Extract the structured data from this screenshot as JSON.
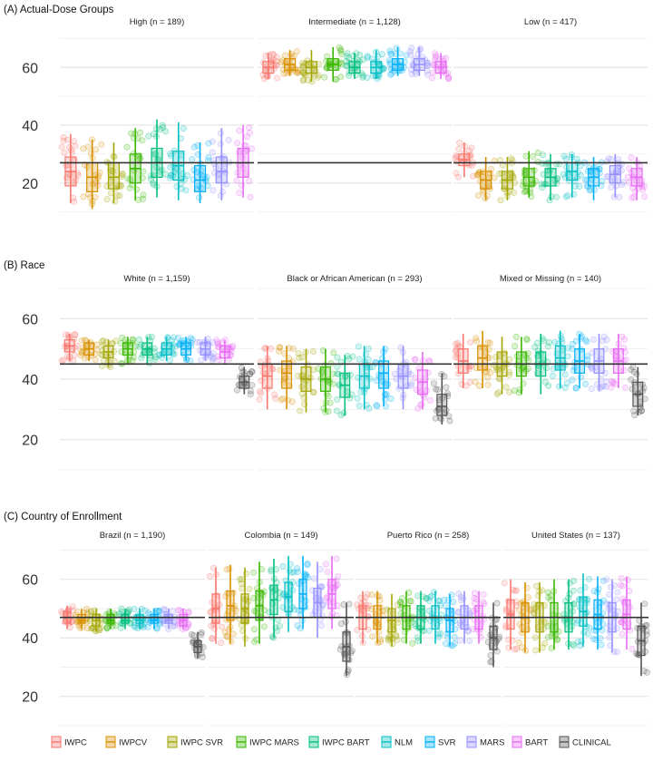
{
  "colors": {
    "series": {
      "IWPC": "#F8766D",
      "IWPCV": "#D89000",
      "IWPC SVR": "#A3A500",
      "IWPC MARS": "#39B600",
      "IWPC BART": "#00BF7D",
      "NLM": "#00BFC4",
      "SVR": "#00B0F6",
      "MARS": "#9590FF",
      "BART": "#E76BF3",
      "CLINICAL": "#FF62BC",
      "CLINICAL_ACTUAL": "#555555"
    },
    "panel_bg": "#FFFFFF",
    "grid": "#E6E6E6",
    "reference_line": "#333333"
  },
  "chart_data": [
    {
      "section": "(A) Actual-Dose Groups",
      "type": "jitter-boxplot",
      "series_order": [
        "IWPC",
        "IWPCV",
        "IWPC SVR",
        "IWPC MARS",
        "IWPC BART",
        "NLM",
        "SVR",
        "MARS",
        "BART"
      ],
      "yticks": [
        20,
        40,
        60
      ],
      "ylim": [
        8,
        72
      ],
      "reference_line": 27,
      "facets": [
        {
          "title": "High (n = 189)",
          "medians": [
            24,
            22,
            22,
            25,
            27,
            26,
            21,
            24,
            27
          ],
          "q1": [
            19,
            17,
            18,
            20,
            22,
            21,
            17,
            20,
            22
          ],
          "q3": [
            29,
            27,
            27,
            30,
            32,
            31,
            26,
            29,
            32
          ],
          "wlo": [
            13,
            11,
            13,
            14,
            15,
            14,
            13,
            14,
            15
          ],
          "whi": [
            37,
            35,
            34,
            39,
            42,
            41,
            34,
            39,
            40
          ],
          "points": 22
        },
        {
          "title": "Intermediate (n = 1,128)",
          "medians": [
            60,
            61,
            60,
            61,
            60,
            60,
            61,
            61,
            60
          ],
          "q1": [
            58,
            59,
            58,
            59,
            58,
            58,
            59,
            59,
            58
          ],
          "q3": [
            62,
            63,
            62,
            63,
            62,
            62,
            63,
            63,
            62
          ],
          "wlo": [
            56,
            57,
            55,
            55,
            56,
            56,
            57,
            57,
            56
          ],
          "whi": [
            65,
            66,
            66,
            67,
            65,
            66,
            67,
            67,
            65
          ],
          "points": 24
        },
        {
          "title": "Low (n = 417)",
          "medians": [
            28,
            21,
            21,
            22,
            22,
            24,
            22,
            23,
            22
          ],
          "q1": [
            26,
            18,
            18,
            19,
            19,
            21,
            19,
            20,
            19
          ],
          "q3": [
            30,
            24,
            24,
            25,
            25,
            27,
            25,
            26,
            25
          ],
          "wlo": [
            22,
            14,
            14,
            15,
            14,
            15,
            14,
            15,
            14
          ],
          "whi": [
            34,
            29,
            29,
            31,
            30,
            30,
            29,
            30,
            29
          ],
          "points": 22
        }
      ]
    },
    {
      "section": "(B) Race",
      "type": "jitter-boxplot",
      "series_order": [
        "IWPC",
        "IWPCV",
        "IWPC SVR",
        "IWPC MARS",
        "IWPC BART",
        "NLM",
        "SVR",
        "MARS",
        "BART",
        "CLINICAL"
      ],
      "yticks": [
        20,
        40,
        60
      ],
      "ylim": [
        10,
        70
      ],
      "reference_line": 45,
      "facets": [
        {
          "title": "White (n = 1,159)",
          "medians": [
            51,
            50,
            49,
            50,
            50,
            50,
            50,
            50,
            49,
            39
          ],
          "q1": [
            49,
            48,
            47,
            48,
            48,
            48,
            48,
            48,
            47,
            37
          ],
          "q3": [
            53,
            52,
            51,
            52,
            52,
            52,
            52,
            52,
            51,
            41
          ],
          "wlo": [
            46,
            46,
            44,
            45,
            45,
            46,
            46,
            46,
            45,
            35
          ],
          "whi": [
            55,
            53,
            53,
            54,
            54,
            54,
            54,
            54,
            53,
            44
          ],
          "points": 20
        },
        {
          "title": "Black or African American (n = 293)",
          "medians": [
            41,
            42,
            40,
            40,
            38,
            41,
            42,
            41,
            39,
            31
          ],
          "q1": [
            37,
            37,
            36,
            36,
            34,
            37,
            37,
            37,
            35,
            28
          ],
          "q3": [
            45,
            46,
            44,
            44,
            42,
            45,
            46,
            45,
            43,
            35
          ],
          "wlo": [
            30,
            30,
            29,
            29,
            28,
            30,
            31,
            30,
            30,
            25
          ],
          "whi": [
            51,
            51,
            50,
            50,
            48,
            51,
            51,
            51,
            49,
            42
          ],
          "points": 20
        },
        {
          "title": "Mixed or Missing (n = 140)",
          "medians": [
            46,
            47,
            45,
            45,
            45,
            47,
            46,
            46,
            46,
            35
          ],
          "q1": [
            42,
            43,
            41,
            41,
            41,
            43,
            42,
            42,
            42,
            31
          ],
          "q3": [
            50,
            51,
            49,
            49,
            49,
            51,
            50,
            50,
            50,
            39
          ],
          "wlo": [
            37,
            37,
            35,
            35,
            35,
            37,
            37,
            36,
            37,
            28
          ],
          "whi": [
            55,
            56,
            54,
            54,
            55,
            56,
            55,
            55,
            55,
            44
          ],
          "points": 20
        }
      ]
    },
    {
      "section": "(C) Country of Enrollment",
      "type": "jitter-boxplot",
      "series_order": [
        "IWPC",
        "IWPCV",
        "IWPC SVR",
        "IWPC MARS",
        "IWPC BART",
        "NLM",
        "SVR",
        "MARS",
        "BART",
        "CLINICAL"
      ],
      "yticks": [
        20,
        40,
        60
      ],
      "ylim": [
        10,
        72
      ],
      "reference_line": 47,
      "facets": [
        {
          "title": "Brazil (n = 1,190)",
          "medians": [
            47,
            46,
            46,
            46,
            46,
            46,
            46,
            46,
            46,
            37
          ],
          "q1": [
            45,
            45,
            44,
            45,
            45,
            45,
            45,
            45,
            44,
            35
          ],
          "q3": [
            49,
            48,
            48,
            48,
            48,
            48,
            48,
            48,
            48,
            39
          ],
          "wlo": [
            43,
            43,
            42,
            43,
            43,
            43,
            43,
            43,
            43,
            33
          ],
          "whi": [
            51,
            50,
            50,
            50,
            50,
            50,
            50,
            50,
            50,
            42
          ],
          "points": 20
        },
        {
          "title": "Colombia (n = 149)",
          "medians": [
            50,
            51,
            50,
            51,
            53,
            54,
            55,
            52,
            55,
            37
          ],
          "q1": [
            45,
            46,
            45,
            46,
            48,
            49,
            50,
            47,
            50,
            32
          ],
          "q3": [
            55,
            56,
            55,
            56,
            58,
            59,
            60,
            57,
            60,
            42
          ],
          "wlo": [
            38,
            38,
            37,
            38,
            40,
            42,
            43,
            40,
            43,
            27
          ],
          "whi": [
            64,
            65,
            64,
            66,
            67,
            68,
            68,
            66,
            68,
            52
          ],
          "points": 20
        },
        {
          "title": "Puerto Rico (n = 258)",
          "medians": [
            47,
            47,
            46,
            47,
            47,
            47,
            46,
            47,
            47,
            40
          ],
          "q1": [
            43,
            43,
            42,
            43,
            43,
            43,
            42,
            43,
            43,
            36
          ],
          "q3": [
            51,
            51,
            50,
            51,
            51,
            51,
            50,
            51,
            51,
            44
          ],
          "wlo": [
            38,
            38,
            37,
            38,
            38,
            38,
            37,
            38,
            38,
            30
          ],
          "whi": [
            56,
            56,
            55,
            56,
            56,
            56,
            55,
            56,
            56,
            52
          ],
          "points": 20
        },
        {
          "title": "United States (n = 137)",
          "medians": [
            48,
            47,
            47,
            47,
            47,
            49,
            48,
            47,
            48,
            39
          ],
          "q1": [
            43,
            42,
            42,
            42,
            42,
            44,
            43,
            42,
            43,
            34
          ],
          "q3": [
            53,
            52,
            52,
            52,
            52,
            54,
            53,
            52,
            53,
            44
          ],
          "wlo": [
            36,
            35,
            35,
            36,
            36,
            37,
            36,
            35,
            36,
            27
          ],
          "whi": [
            60,
            59,
            59,
            60,
            60,
            62,
            61,
            60,
            61,
            52
          ],
          "points": 20
        }
      ]
    }
  ],
  "legend": {
    "placement": "bottom",
    "items": [
      "IWPC",
      "IWPCV",
      "IWPC SVR",
      "IWPC MARS",
      "IWPC BART",
      "NLM",
      "SVR",
      "MARS",
      "BART",
      "CLINICAL"
    ]
  }
}
